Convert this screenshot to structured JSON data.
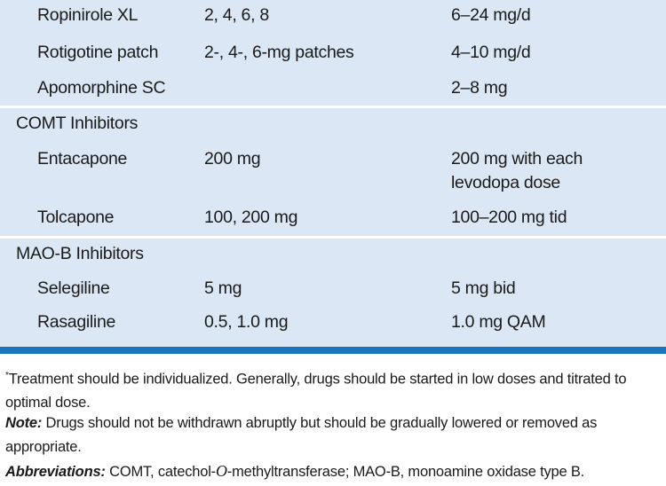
{
  "table": {
    "sections": [
      {
        "rows": [
          {
            "drug": "Ropinirole XL",
            "strengths": "2, 4, 6, 8",
            "dose": "6–24 mg/d"
          },
          {
            "drug": "Rotigotine patch",
            "strengths": "2-, 4-, 6-mg patches",
            "dose": "4–10 mg/d"
          },
          {
            "drug": "Apomorphine SC",
            "dose": "2–8 mg"
          }
        ]
      },
      {
        "heading": "COMT Inhibitors",
        "rows": [
          {
            "drug": "Entacapone",
            "strengths": "200 mg",
            "dose": "200 mg with each levodopa dose"
          },
          {
            "drug": "Tolcapone",
            "strengths": "100, 200 mg",
            "dose": "100–200 mg tid"
          }
        ]
      },
      {
        "heading": "MAO-B Inhibitors",
        "rows": [
          {
            "drug": "Selegiline",
            "strengths": "5 mg",
            "dose": "5 mg bid"
          },
          {
            "drug": "Rasagiline",
            "strengths": "0.5, 1.0 mg",
            "dose": "1.0 mg QAM"
          }
        ]
      }
    ]
  },
  "footnotes": {
    "marker": "*",
    "treatment": "Treatment should be individualized. Generally, drugs should be started in low doses and titrated to optimal dose.",
    "note": {
      "label": "Note:",
      "text": " Drugs should not be withdrawn abruptly but should be gradually lowered or removed as appropriate."
    },
    "abbreviations": {
      "label": "Abbreviations:",
      "parts": [
        " COMT, catechol-",
        "O",
        "-methyltransferase; MAO-B, monoamine oxidase type B."
      ]
    }
  }
}
